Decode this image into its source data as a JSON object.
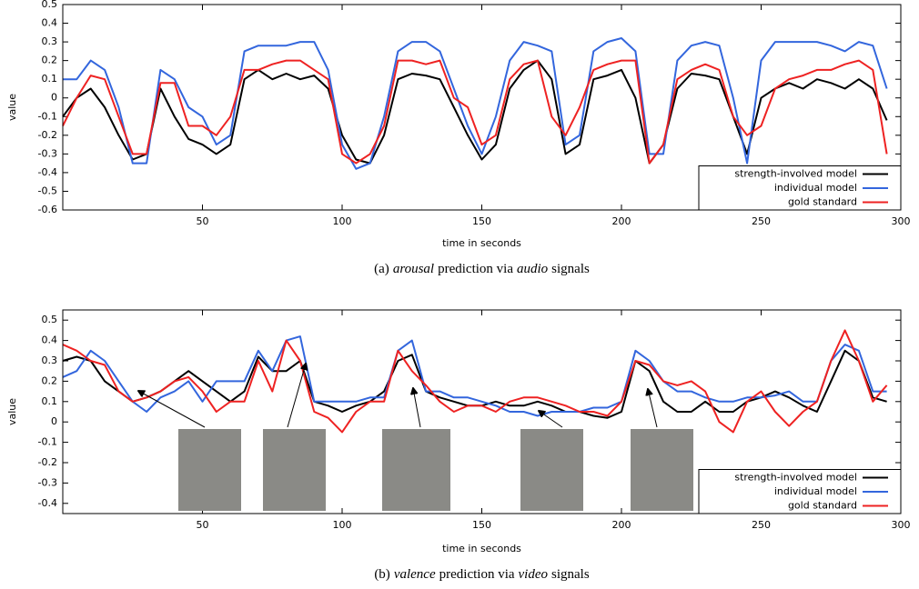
{
  "chart_data": [
    {
      "type": "line",
      "caption": [
        "(a)",
        "arousal",
        "prediction via",
        "audio",
        "signals"
      ],
      "xlabel": "time in seconds",
      "ylabel": "value",
      "xlim": [
        0,
        300
      ],
      "xticks": [
        50,
        100,
        150,
        200,
        250,
        300
      ],
      "ylim": [
        -0.6,
        0.5
      ],
      "yticks": [
        0.5,
        0.4,
        0.3,
        0.2,
        0.1,
        0,
        -0.1,
        -0.2,
        -0.3,
        -0.4,
        -0.5,
        -0.6
      ],
      "legend": "lower right",
      "x": [
        0,
        5,
        10,
        15,
        20,
        25,
        30,
        35,
        40,
        45,
        50,
        55,
        60,
        65,
        70,
        75,
        80,
        85,
        90,
        95,
        100,
        105,
        110,
        115,
        120,
        125,
        130,
        135,
        140,
        145,
        150,
        155,
        160,
        165,
        170,
        175,
        180,
        185,
        190,
        195,
        200,
        205,
        210,
        215,
        220,
        225,
        230,
        235,
        240,
        245,
        250,
        255,
        260,
        265,
        270,
        275,
        280,
        285,
        290,
        295
      ],
      "series": [
        {
          "name": "strength-involved model",
          "color": "#000000",
          "values": [
            -0.1,
            0.0,
            0.05,
            -0.05,
            -0.2,
            -0.33,
            -0.3,
            0.05,
            -0.1,
            -0.22,
            -0.25,
            -0.3,
            -0.25,
            0.1,
            0.15,
            0.1,
            0.13,
            0.1,
            0.12,
            0.05,
            -0.2,
            -0.33,
            -0.35,
            -0.2,
            0.1,
            0.13,
            0.12,
            0.1,
            -0.05,
            -0.2,
            -0.33,
            -0.25,
            0.05,
            0.15,
            0.2,
            0.1,
            -0.3,
            -0.25,
            0.1,
            0.12,
            0.15,
            0.0,
            -0.35,
            -0.25,
            0.05,
            0.13,
            0.12,
            0.1,
            -0.1,
            -0.3,
            0.0,
            0.05,
            0.08,
            0.05,
            0.1,
            0.08,
            0.05,
            0.1,
            0.05,
            -0.12
          ]
        },
        {
          "name": "individual model",
          "color": "#3366dd",
          "values": [
            0.1,
            0.1,
            0.2,
            0.15,
            -0.05,
            -0.35,
            -0.35,
            0.15,
            0.1,
            -0.05,
            -0.1,
            -0.25,
            -0.2,
            0.25,
            0.28,
            0.28,
            0.28,
            0.3,
            0.3,
            0.15,
            -0.25,
            -0.38,
            -0.35,
            -0.1,
            0.25,
            0.3,
            0.3,
            0.25,
            0.05,
            -0.15,
            -0.3,
            -0.1,
            0.2,
            0.3,
            0.28,
            0.25,
            -0.25,
            -0.2,
            0.25,
            0.3,
            0.32,
            0.25,
            -0.3,
            -0.3,
            0.2,
            0.28,
            0.3,
            0.28,
            0.0,
            -0.35,
            0.2,
            0.3,
            0.3,
            0.3,
            0.3,
            0.28,
            0.25,
            0.3,
            0.28,
            0.05
          ]
        },
        {
          "name": "gold standard",
          "color": "#ee2222",
          "values": [
            -0.15,
            0.0,
            0.12,
            0.1,
            -0.1,
            -0.3,
            -0.3,
            0.08,
            0.08,
            -0.15,
            -0.15,
            -0.2,
            -0.1,
            0.15,
            0.15,
            0.18,
            0.2,
            0.2,
            0.15,
            0.1,
            -0.3,
            -0.35,
            -0.3,
            -0.15,
            0.2,
            0.2,
            0.18,
            0.2,
            0.0,
            -0.05,
            -0.25,
            -0.2,
            0.1,
            0.18,
            0.2,
            -0.1,
            -0.2,
            -0.05,
            0.15,
            0.18,
            0.2,
            0.2,
            -0.35,
            -0.25,
            0.1,
            0.15,
            0.18,
            0.15,
            -0.1,
            -0.2,
            -0.15,
            0.05,
            0.1,
            0.12,
            0.15,
            0.15,
            0.18,
            0.2,
            0.15,
            -0.3
          ]
        }
      ]
    },
    {
      "type": "line",
      "caption": [
        "(b)",
        "valence",
        "prediction via",
        "video",
        "signals"
      ],
      "xlabel": "time in seconds",
      "ylabel": "value",
      "xlim": [
        0,
        300
      ],
      "xticks": [
        50,
        100,
        150,
        200,
        250,
        300
      ],
      "ylim": [
        -0.45,
        0.55
      ],
      "yticks": [
        0.5,
        0.4,
        0.3,
        0.2,
        0.1,
        0,
        -0.1,
        -0.2,
        -0.3,
        -0.4
      ],
      "legend": "lower right",
      "x": [
        0,
        5,
        10,
        15,
        20,
        25,
        30,
        35,
        40,
        45,
        50,
        55,
        60,
        65,
        70,
        75,
        80,
        85,
        90,
        95,
        100,
        105,
        110,
        115,
        120,
        125,
        130,
        135,
        140,
        145,
        150,
        155,
        160,
        165,
        170,
        175,
        180,
        185,
        190,
        195,
        200,
        205,
        210,
        215,
        220,
        225,
        230,
        235,
        240,
        245,
        250,
        255,
        260,
        265,
        270,
        275,
        280,
        285,
        290,
        295
      ],
      "series": [
        {
          "name": "strength-involved model",
          "color": "#000000",
          "values": [
            0.3,
            0.32,
            0.3,
            0.2,
            0.15,
            0.1,
            0.12,
            0.15,
            0.2,
            0.25,
            0.2,
            0.15,
            0.1,
            0.15,
            0.32,
            0.25,
            0.25,
            0.3,
            0.1,
            0.08,
            0.05,
            0.08,
            0.1,
            0.15,
            0.3,
            0.33,
            0.15,
            0.12,
            0.1,
            0.08,
            0.08,
            0.1,
            0.08,
            0.08,
            0.1,
            0.08,
            0.05,
            0.05,
            0.03,
            0.02,
            0.05,
            0.3,
            0.25,
            0.1,
            0.05,
            0.05,
            0.1,
            0.05,
            0.05,
            0.1,
            0.12,
            0.15,
            0.12,
            0.08,
            0.05,
            0.2,
            0.35,
            0.3,
            0.12,
            0.1
          ]
        },
        {
          "name": "individual model",
          "color": "#3366dd",
          "values": [
            0.22,
            0.25,
            0.35,
            0.3,
            0.2,
            0.1,
            0.05,
            0.12,
            0.15,
            0.2,
            0.1,
            0.2,
            0.2,
            0.2,
            0.35,
            0.25,
            0.4,
            0.42,
            0.1,
            0.1,
            0.1,
            0.1,
            0.12,
            0.12,
            0.35,
            0.4,
            0.15,
            0.15,
            0.12,
            0.12,
            0.1,
            0.08,
            0.05,
            0.05,
            0.03,
            0.05,
            0.05,
            0.05,
            0.07,
            0.07,
            0.1,
            0.35,
            0.3,
            0.2,
            0.15,
            0.15,
            0.12,
            0.1,
            0.1,
            0.12,
            0.12,
            0.13,
            0.15,
            0.1,
            0.1,
            0.3,
            0.38,
            0.35,
            0.15,
            0.15
          ]
        },
        {
          "name": "gold standard",
          "color": "#ee2222",
          "values": [
            0.38,
            0.35,
            0.3,
            0.28,
            0.15,
            0.1,
            0.12,
            0.15,
            0.2,
            0.22,
            0.15,
            0.05,
            0.1,
            0.1,
            0.3,
            0.15,
            0.4,
            0.3,
            0.05,
            0.02,
            -0.05,
            0.05,
            0.1,
            0.1,
            0.35,
            0.25,
            0.18,
            0.1,
            0.05,
            0.08,
            0.08,
            0.05,
            0.1,
            0.12,
            0.12,
            0.1,
            0.08,
            0.05,
            0.05,
            0.03,
            0.1,
            0.3,
            0.28,
            0.2,
            0.18,
            0.2,
            0.15,
            0.0,
            -0.05,
            0.1,
            0.15,
            0.05,
            -0.02,
            0.05,
            0.1,
            0.3,
            0.45,
            0.3,
            0.1,
            0.18
          ]
        }
      ]
    }
  ]
}
